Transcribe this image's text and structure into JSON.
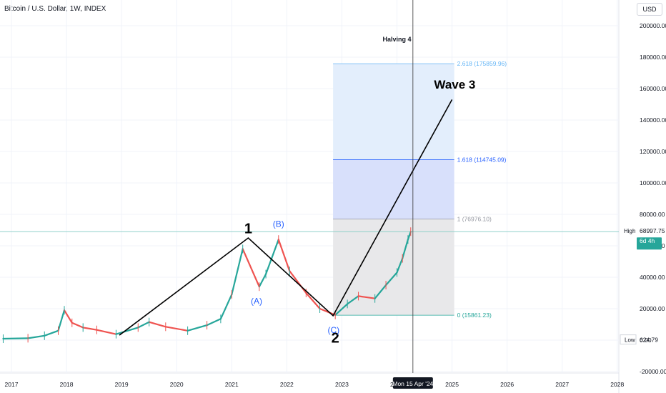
{
  "header": {
    "title": "Bitcoin / U.S. Dollar, 1W, INDEX",
    "currency": "USD"
  },
  "chart_data": {
    "type": "line",
    "title": "Bitcoin / U.S. Dollar, 1W, INDEX",
    "x_ticks": [
      "2017",
      "2018",
      "2019",
      "2020",
      "2021",
      "2022",
      "2023",
      "2024",
      "2025",
      "2026",
      "2027",
      "2028"
    ],
    "y_ticks": [
      -20000,
      0,
      20000,
      40000,
      60000,
      80000,
      100000,
      120000,
      140000,
      160000,
      180000,
      200000
    ],
    "y_tick_labels": [
      "-20000.00",
      "0.00",
      "20000.00",
      "40000.00",
      "60000.00",
      "80000.00",
      "100000.00",
      "120000.00",
      "140000.00",
      "160000.00",
      "180000.00",
      "200000.00"
    ],
    "ylim": [
      -20000,
      210000
    ],
    "grid": true,
    "series": [
      {
        "x": [
          2016.85,
          2017.3,
          2017.6,
          2017.85,
          2017.96,
          2018.1,
          2018.3,
          2018.55,
          2018.9,
          2019.3,
          2019.5,
          2019.8,
          2020.2,
          2020.55,
          2020.8,
          2021.0,
          2021.2,
          2021.5,
          2021.62,
          2021.85,
          2022.05,
          2022.35,
          2022.6,
          2022.88,
          2023.1,
          2023.3,
          2023.6,
          2023.8,
          2024.0,
          2024.1,
          2024.2,
          2024.25
        ],
        "y": [
          900,
          1200,
          2800,
          6000,
          19000,
          11000,
          8000,
          6500,
          3800,
          8000,
          11500,
          8500,
          6000,
          9500,
          13500,
          29000,
          58000,
          34000,
          42000,
          64000,
          44000,
          30000,
          20000,
          16000,
          23000,
          28000,
          26500,
          35000,
          43000,
          52000,
          64000,
          69000
        ]
      }
    ],
    "elliott_wave": {
      "x": [
        2018.96,
        2021.3,
        2022.84,
        2025.0
      ],
      "y": [
        3150,
        65000,
        15500,
        153000
      ]
    },
    "fibonacci": {
      "levels": [
        {
          "ratio": "0",
          "value": 15861.23,
          "label": "0 (15861.23)"
        },
        {
          "ratio": "1",
          "value": 76976.1,
          "label": "1 (76976.10)"
        },
        {
          "ratio": "1.618",
          "value": 114745.09,
          "label": "1.618 (114745.09)"
        },
        {
          "ratio": "2.618",
          "value": 175859.96,
          "label": "2.618 (175859.96)"
        }
      ],
      "x_range": [
        2022.84,
        2025.04
      ]
    },
    "annotations": [
      {
        "text": "1",
        "x": 2021.3,
        "y": 68000
      },
      {
        "text": "2",
        "x": 2022.88,
        "y": -1500
      },
      {
        "text": "(A)",
        "x": 2021.45,
        "y": 23000
      },
      {
        "text": "(B)",
        "x": 2021.85,
        "y": 72000
      },
      {
        "text": "(C)",
        "x": 2022.85,
        "y": 4500
      },
      {
        "text": "Wave 3",
        "x": 2025.05,
        "y": 160000
      },
      {
        "text": "Halving 4",
        "x": 2024.0,
        "y": 190000
      }
    ],
    "halving_date": 2024.29,
    "halving_label": "Mon 15 Apr '24",
    "high": {
      "label": "High",
      "value": 68997.75,
      "value_label": "68997.75"
    },
    "low": {
      "label": "Low",
      "value": 624.79,
      "value_label": "624.79"
    },
    "price_tag": {
      "value_label": "68997.75",
      "sub_label": "6d 4h"
    }
  }
}
